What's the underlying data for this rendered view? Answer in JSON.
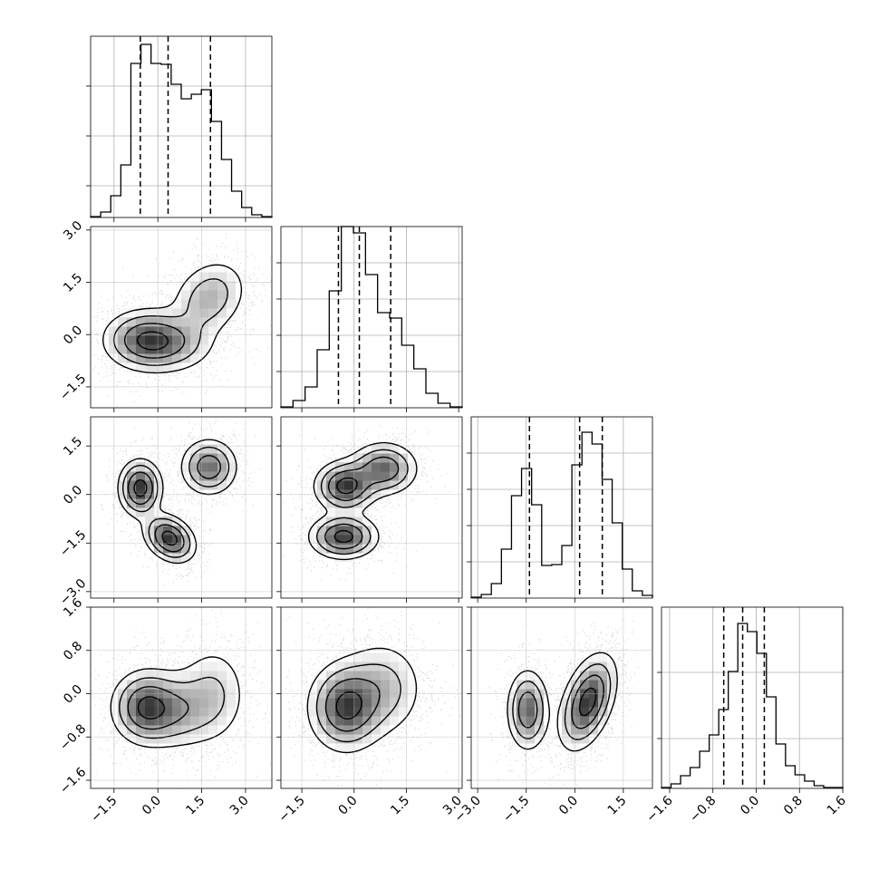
{
  "chart_data": {
    "type": "corner",
    "dimensions": [
      {
        "range": [
          -2.3,
          3.9
        ],
        "ticks": [
          -1.5,
          0.0,
          1.5,
          3.0
        ],
        "tick_labels": [
          "−1.5",
          "0.0",
          "1.5",
          "3.0"
        ],
        "quantiles": [
          -0.6,
          0.35,
          1.8
        ],
        "histogram": [
          1,
          6,
          24,
          58,
          170,
          191,
          170,
          169,
          147,
          131,
          136,
          141,
          106,
          64,
          29,
          11,
          3,
          1
        ],
        "grid_y": [
          55,
          110,
          165
        ]
      },
      {
        "range": [
          -2.1,
          3.1
        ],
        "ticks": [
          -1.5,
          0.0,
          1.5,
          3.0
        ],
        "tick_labels": [
          "−1.5",
          "0.0",
          "1.5",
          "3.0"
        ],
        "quantiles": [
          -0.45,
          0.15,
          1.05
        ],
        "histogram": [
          1,
          8,
          23,
          64,
          129,
          200,
          193,
          147,
          105,
          99,
          69,
          43,
          16,
          5,
          1
        ],
        "grid_y": [
          40,
          80,
          120,
          160
        ]
      },
      {
        "range": [
          -3.2,
          2.4
        ],
        "ticks": [
          -3.0,
          -1.5,
          0.0,
          1.5
        ],
        "tick_labels": [
          "−3.0",
          "−1.5",
          "0.0",
          "1.5"
        ],
        "quantiles": [
          -1.4,
          0.15,
          0.85
        ],
        "histogram": [
          1,
          4,
          16,
          54,
          113,
          143,
          103,
          36,
          37,
          58,
          147,
          183,
          170,
          131,
          83,
          32,
          8,
          3
        ],
        "grid_y": [
          40,
          80,
          120,
          160
        ]
      },
      {
        "range": [
          -1.75,
          1.6
        ],
        "ticks": [
          -1.6,
          -0.8,
          0.0,
          0.8,
          1.6
        ],
        "tick_labels": [
          "−1.6",
          "−0.8",
          "0.0",
          "0.8",
          "1.6"
        ],
        "quantiles": [
          -0.6,
          -0.25,
          0.15
        ],
        "histogram": [
          1,
          5,
          14,
          23,
          41,
          59,
          87,
          129,
          182,
          173,
          149,
          101,
          49,
          25,
          15,
          8,
          3,
          1,
          1
        ],
        "grid_y": [
          72,
          145
        ]
      }
    ],
    "pairs": [
      {
        "row": 1,
        "col": 0,
        "blobs": [
          {
            "x": -0.45,
            "y": -0.15,
            "sx": 0.75,
            "sy": 0.45,
            "w": 1.0
          },
          {
            "x": 0.5,
            "y": -0.25,
            "sx": 0.8,
            "sy": 0.45,
            "w": 0.55
          },
          {
            "x": 1.75,
            "y": 1.05,
            "sx": 0.7,
            "sy": 0.6,
            "w": 0.6,
            "corr": 0.25
          }
        ],
        "contour_levels": [
          0.13,
          0.3,
          0.55,
          0.85
        ]
      },
      {
        "row": 2,
        "col": 0,
        "blobs": [
          {
            "x": -0.6,
            "y": 0.2,
            "sx": 0.38,
            "sy": 0.45,
            "w": 1.0
          },
          {
            "x": 0.4,
            "y": -1.35,
            "sx": 0.45,
            "sy": 0.38,
            "w": 1.0,
            "corr": -0.3
          },
          {
            "x": 1.75,
            "y": 0.85,
            "sx": 0.5,
            "sy": 0.45,
            "w": 0.75
          }
        ],
        "contour_levels": [
          0.13,
          0.3,
          0.55,
          0.85
        ]
      },
      {
        "row": 2,
        "col": 1,
        "blobs": [
          {
            "x": -0.25,
            "y": 0.25,
            "sx": 0.45,
            "sy": 0.4,
            "w": 1.0
          },
          {
            "x": 0.85,
            "y": 0.8,
            "sx": 0.5,
            "sy": 0.42,
            "w": 0.8
          },
          {
            "x": -0.3,
            "y": -1.3,
            "sx": 0.5,
            "sy": 0.35,
            "w": 1.0
          }
        ],
        "contour_levels": [
          0.13,
          0.3,
          0.55,
          0.85
        ]
      },
      {
        "row": 3,
        "col": 0,
        "blobs": [
          {
            "x": -0.45,
            "y": -0.25,
            "sx": 0.6,
            "sy": 0.35,
            "w": 1.0
          },
          {
            "x": 0.6,
            "y": -0.3,
            "sx": 0.75,
            "sy": 0.38,
            "w": 0.6
          },
          {
            "x": 1.9,
            "y": 0.0,
            "sx": 0.65,
            "sy": 0.5,
            "w": 0.4
          }
        ],
        "contour_levels": [
          0.13,
          0.3,
          0.55,
          0.85
        ]
      },
      {
        "row": 3,
        "col": 1,
        "blobs": [
          {
            "x": -0.25,
            "y": -0.25,
            "sx": 0.55,
            "sy": 0.42,
            "w": 1.0
          },
          {
            "x": 0.8,
            "y": 0.1,
            "sx": 0.65,
            "sy": 0.48,
            "w": 0.45
          }
        ],
        "contour_levels": [
          0.13,
          0.3,
          0.55,
          0.85
        ]
      },
      {
        "row": 3,
        "col": 2,
        "blobs": [
          {
            "x": -1.45,
            "y": -0.3,
            "sx": 0.33,
            "sy": 0.38,
            "w": 0.8
          },
          {
            "x": 0.4,
            "y": -0.15,
            "sx": 0.45,
            "sy": 0.45,
            "w": 1.0,
            "corr": 0.45
          }
        ],
        "contour_levels": [
          0.13,
          0.3,
          0.55,
          0.85
        ]
      }
    ],
    "grid": true
  }
}
